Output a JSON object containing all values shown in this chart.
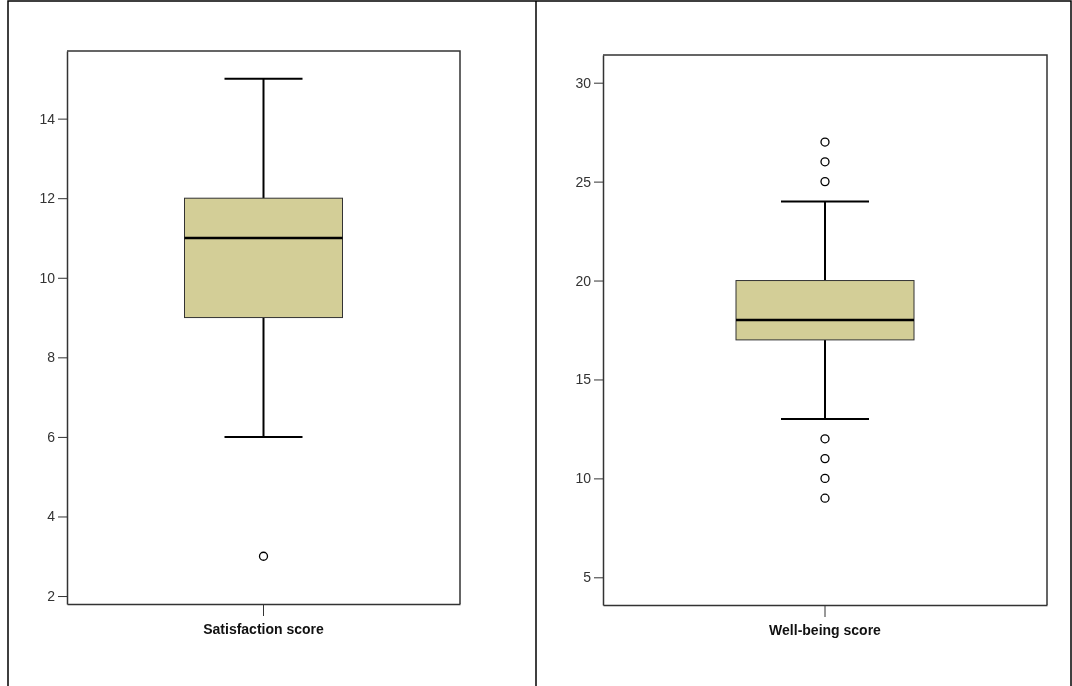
{
  "chart_data": [
    {
      "type": "box",
      "categories": [
        "Satisfaction score"
      ],
      "color": "#d3ce97",
      "ylim": [
        1.8,
        15.7
      ],
      "yticks": [
        2,
        4,
        6,
        8,
        10,
        12,
        14
      ],
      "grid": false,
      "boxes": [
        {
          "low": 6,
          "q1": 9,
          "median": 11,
          "q3": 12,
          "high": 15,
          "outliers": [
            3
          ]
        }
      ]
    },
    {
      "type": "box",
      "categories": [
        "Well-being score"
      ],
      "color": "#d3ce97",
      "ylim": [
        3.6,
        31.4
      ],
      "yticks": [
        5,
        10,
        15,
        20,
        25,
        30
      ],
      "grid": false,
      "boxes": [
        {
          "low": 13,
          "q1": 17,
          "median": 18,
          "q3": 20,
          "high": 24,
          "outliers": [
            25,
            26,
            27,
            12,
            11,
            10,
            9
          ]
        }
      ]
    }
  ]
}
